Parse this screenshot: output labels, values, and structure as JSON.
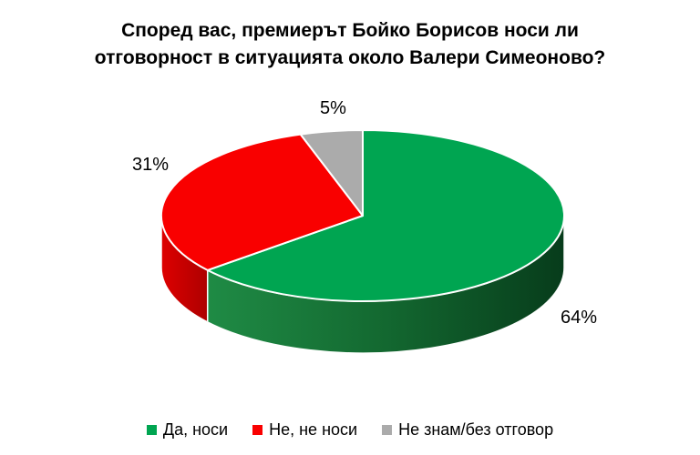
{
  "chart_data": {
    "type": "pie",
    "style": "3d",
    "title": "Според вас, премиерът Бойко Борисов носи ли отговорност в ситуацията около Валери Симеоново?",
    "title_lines": [
      "Според вас, премиерът Бойко Борисов носи ли",
      "отговорност в ситуацията около Валери Симеоново?"
    ],
    "start_angle_deg": 0,
    "direction": "clockwise",
    "legend_position": "bottom",
    "background_color": "#FFFFFF",
    "slices": [
      {
        "label": "Да, носи",
        "value": 64,
        "display": "64%",
        "color": "#00A551",
        "side_colors": [
          "#1F8B45",
          "#136830",
          "#073C1B"
        ]
      },
      {
        "label": "Не, не носи",
        "value": 31,
        "display": "31%",
        "color": "#F90000",
        "side_colors": [
          "#DE0000",
          "#AD0000"
        ]
      },
      {
        "label": "Не знам/без отговор",
        "value": 5,
        "display": "5%",
        "color": "#ABABAB",
        "side_colors": [
          "#8F8F8F",
          "#7A7A7A"
        ]
      }
    ]
  }
}
